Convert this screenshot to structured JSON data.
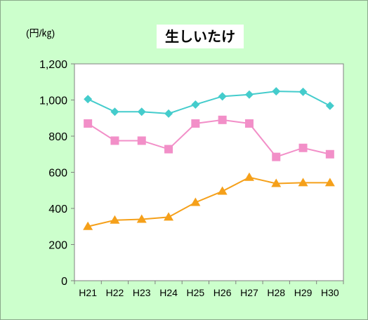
{
  "chart_data": {
    "type": "line",
    "title": "生しいたけ",
    "unit_label": "(円/㎏)",
    "categories": [
      "H21",
      "H22",
      "H23",
      "H24",
      "H25",
      "H26",
      "H27",
      "H28",
      "H29",
      "H30"
    ],
    "ylim": [
      0,
      1200
    ],
    "yticks": [
      0,
      200,
      400,
      600,
      800,
      1000,
      1200
    ],
    "ytick_labels": [
      "0",
      "200",
      "400",
      "600",
      "800",
      "1,000",
      "1,200"
    ],
    "grid": false,
    "legend": "none",
    "series": [
      {
        "color": "#44cccc",
        "marker": "diamond",
        "values": [
          1005,
          935,
          935,
          925,
          975,
          1020,
          1030,
          1048,
          1045,
          968
        ]
      },
      {
        "color": "#f28fc8",
        "marker": "square",
        "values": [
          870,
          775,
          775,
          728,
          870,
          890,
          870,
          685,
          735,
          700
        ]
      },
      {
        "color": "#f5a01a",
        "marker": "triangle",
        "values": [
          300,
          335,
          340,
          352,
          433,
          495,
          572,
          538,
          542,
          542
        ]
      }
    ]
  }
}
